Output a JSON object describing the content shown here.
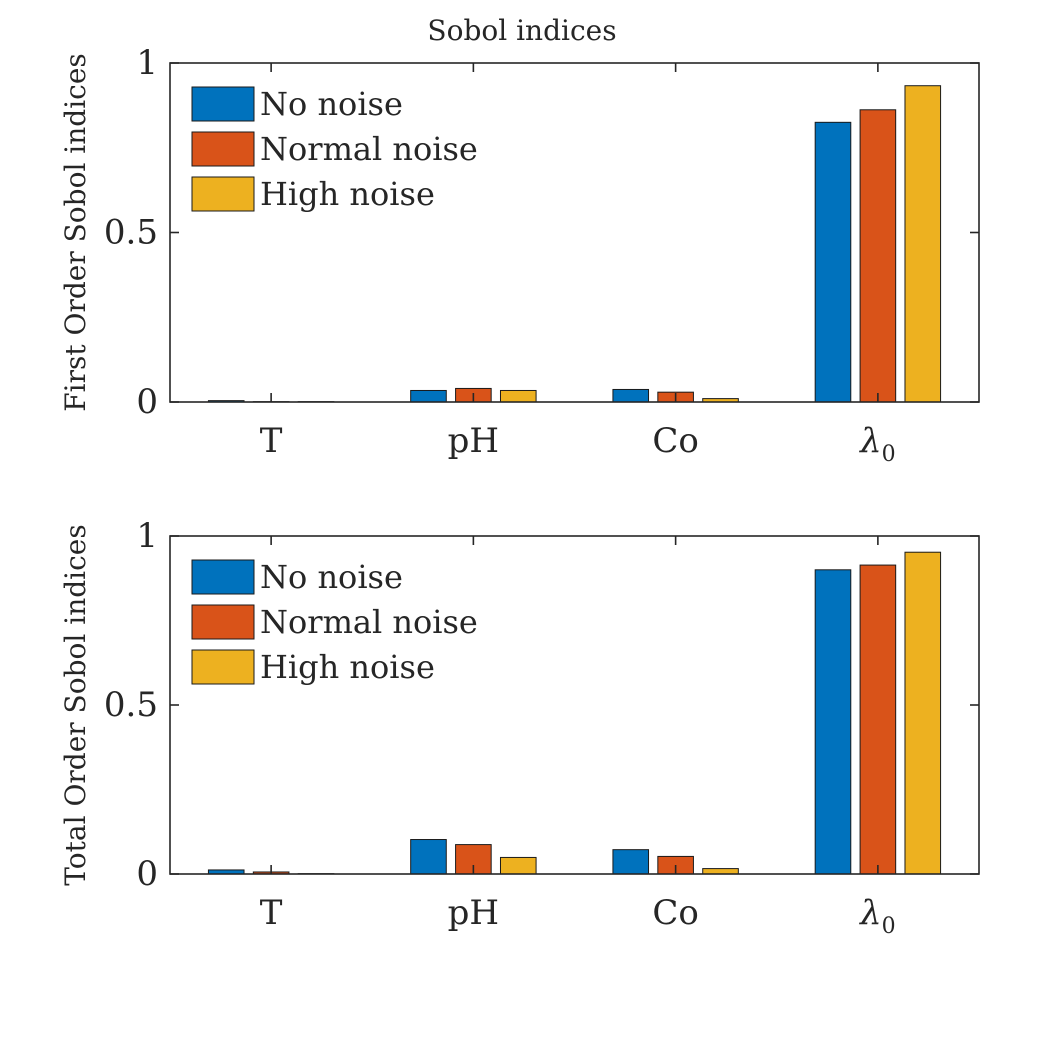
{
  "figure": {
    "title": "Sobol indices"
  },
  "colors": {
    "axis": "#262626",
    "bar_edge": "#1a1a1a"
  },
  "chart_data": [
    {
      "type": "bar",
      "title": "Sobol indices",
      "ylabel": "First Order Sobol indices",
      "xlabel": "",
      "categories": [
        "T",
        "pH",
        "Co",
        "λ"
      ],
      "category_subscripts": [
        "",
        "",
        "",
        "0"
      ],
      "ylim": [
        0,
        1
      ],
      "yticks": [
        0,
        0.5,
        1
      ],
      "ytick_labels": [
        "0",
        "0.5",
        "1"
      ],
      "legend_position": "top-left",
      "grid": false,
      "series": [
        {
          "name": "No noise",
          "color": "#0072BD",
          "values": [
            0.004,
            0.034,
            0.037,
            0.825
          ]
        },
        {
          "name": "Normal noise",
          "color": "#D95319",
          "values": [
            0.001,
            0.04,
            0.029,
            0.862
          ]
        },
        {
          "name": "High noise",
          "color": "#EDB120",
          "values": [
            0.001,
            0.034,
            0.01,
            0.933
          ]
        }
      ]
    },
    {
      "type": "bar",
      "title": "",
      "ylabel": "Total Order Sobol indices",
      "xlabel": "",
      "categories": [
        "T",
        "pH",
        "Co",
        "λ"
      ],
      "category_subscripts": [
        "",
        "",
        "",
        "0"
      ],
      "ylim": [
        0,
        1
      ],
      "yticks": [
        0,
        0.5,
        1
      ],
      "ytick_labels": [
        "0",
        "0.5",
        "1"
      ],
      "legend_position": "top-left",
      "grid": false,
      "series": [
        {
          "name": "No noise",
          "color": "#0072BD",
          "values": [
            0.012,
            0.102,
            0.072,
            0.9
          ]
        },
        {
          "name": "Normal noise",
          "color": "#D95319",
          "values": [
            0.006,
            0.087,
            0.052,
            0.914
          ]
        },
        {
          "name": "High noise",
          "color": "#EDB120",
          "values": [
            0.001,
            0.049,
            0.016,
            0.952
          ]
        }
      ]
    }
  ]
}
